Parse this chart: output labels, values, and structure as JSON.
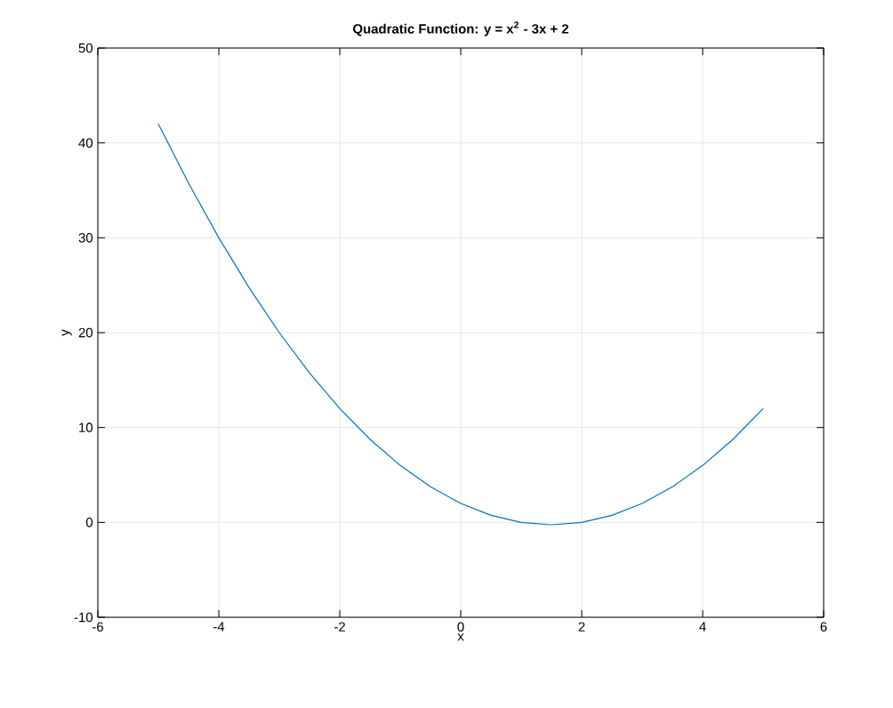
{
  "chart_data": {
    "type": "line",
    "title": "Quadratic Function: y = x$^{2}$ - 3x + 2",
    "xlabel": "x",
    "ylabel": "y",
    "x": [
      -5,
      -4.5,
      -4,
      -3.5,
      -3,
      -2.5,
      -2,
      -1.5,
      -1,
      -0.5,
      0,
      0.5,
      1,
      1.5,
      2,
      2.5,
      3,
      3.5,
      4,
      4.5,
      5
    ],
    "series": [
      {
        "color": "#0072bd",
        "values": [
          42,
          35.75,
          30,
          24.75,
          20,
          15.75,
          12,
          8.75,
          6,
          3.75,
          2,
          0.75,
          0,
          -0.25,
          0,
          0.75,
          2,
          3.75,
          6,
          8.75,
          12
        ]
      }
    ],
    "xlim": [
      -6,
      6
    ],
    "ylim": [
      -10,
      50
    ],
    "xticks": [
      -6,
      -4,
      -2,
      0,
      2,
      4,
      6
    ],
    "yticks": [
      -10,
      0,
      10,
      20,
      30,
      40,
      50
    ],
    "grid": true,
    "marker": "none",
    "line_style": "solid"
  }
}
